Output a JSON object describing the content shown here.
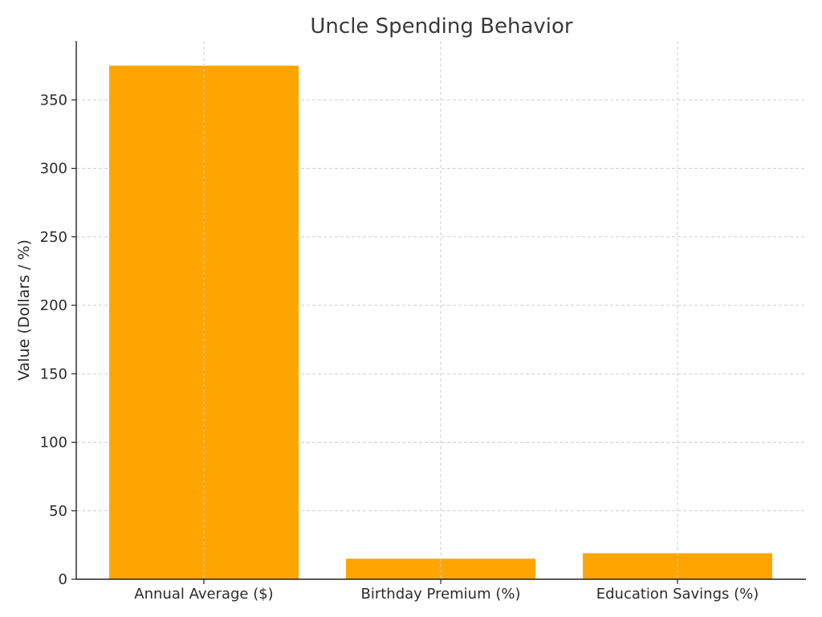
{
  "chart_data": {
    "type": "bar",
    "title": "Uncle Spending Behavior",
    "xlabel": "",
    "ylabel": "Value (Dollars / %)",
    "categories": [
      "Annual Average ($)",
      "Birthday Premium (%)",
      "Education Savings (%)"
    ],
    "values": [
      375,
      15,
      19
    ],
    "ylim": [
      0,
      393
    ],
    "yticks": [
      0,
      50,
      100,
      150,
      200,
      250,
      300,
      350
    ],
    "grid": true,
    "bar_color": "#ffa500"
  }
}
